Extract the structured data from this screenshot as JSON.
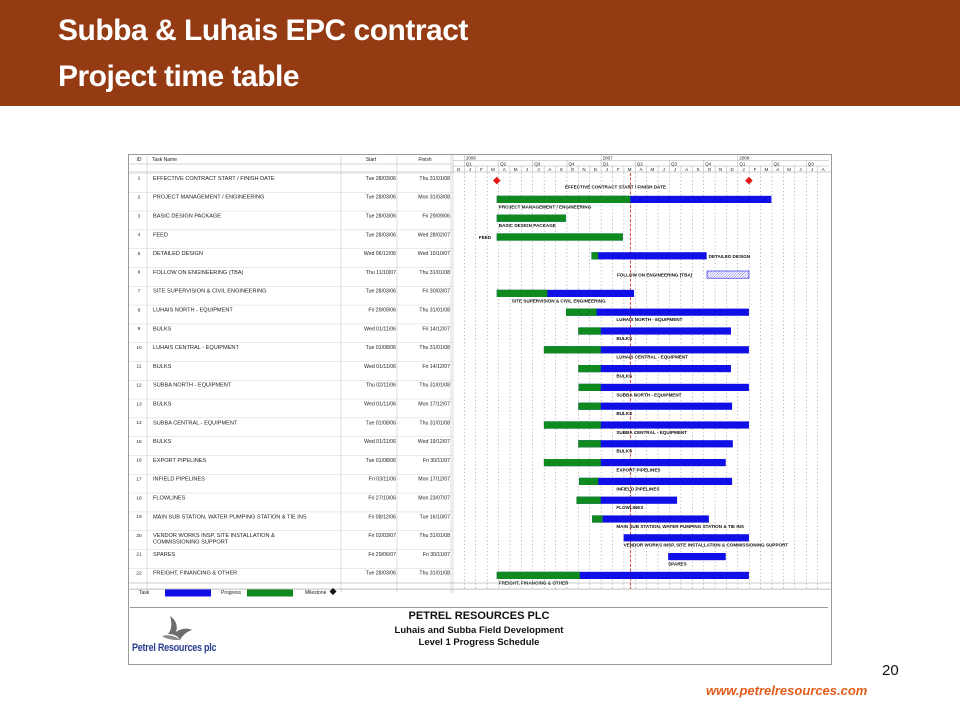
{
  "slide": {
    "title_line1": "Subba & Luhais EPC contract",
    "title_line2": "Project time table",
    "page_number": "20",
    "website": "www.petrelresources.com"
  },
  "colors": {
    "banner": "#953b14",
    "task": "#1010e6",
    "progress": "#0e8a1f",
    "milestone": "#e01818",
    "website": "#e35c1a"
  },
  "footer": {
    "company": "PETREL RESOURCES PLC",
    "project": "Luhais and Subba Field Development",
    "schedule": "Level 1 Progress Schedule",
    "logo_text": "Petrel Resources plc"
  },
  "chart_data": {
    "type": "gantt",
    "columns": [
      "ID",
      "Task Name",
      "Start",
      "Finish"
    ],
    "years": [
      "2006",
      "2007",
      "2008"
    ],
    "quarters": [
      "Q1",
      "Q2",
      "Q3",
      "Q4",
      "Q1",
      "Q2",
      "Q3",
      "Q4",
      "Q1",
      "Q2",
      "Q3"
    ],
    "months": [
      "D",
      "J",
      "F",
      "M",
      "A",
      "M",
      "J",
      "J",
      "A",
      "S",
      "O",
      "N",
      "D",
      "J",
      "F",
      "M",
      "A",
      "M",
      "J",
      "J",
      "A",
      "S",
      "O",
      "N",
      "D",
      "J",
      "F",
      "M",
      "A",
      "M",
      "J",
      "J",
      "A"
    ],
    "timeline": {
      "start": "2005-12-01",
      "end": "2008-09-01",
      "status_date": "2007-03-20"
    },
    "legend": {
      "task": "Task",
      "progress": "Progress",
      "milestone": "Milestone"
    },
    "tasks": [
      {
        "id": "1",
        "name": "EFFECTIVE CONTRACT START / FINISH DATE",
        "start": "Tue 28/03/06",
        "finish": "Thu 31/01/08",
        "type": "milestones",
        "milestones": [
          "2006-03-28",
          "2008-01-31"
        ],
        "bar_label": "EFFECTIVE CONTRACT START / FINISH DATE"
      },
      {
        "id": "2",
        "name": "PROJECT MANAGEMENT / ENGINEERING",
        "start": "Tue 28/03/06",
        "finish": "Mon 31/03/08",
        "type": "bar",
        "bar_start": "2006-03-28",
        "bar_end": "2008-03-31",
        "progress_to": "2007-03-20",
        "bar_label": "PROJECT MANAGEMENT / ENGINEERING"
      },
      {
        "id": "3",
        "name": "BASIC DESIGN PACKAGE",
        "start": "Tue 28/03/06",
        "finish": "Fri 29/09/06",
        "type": "bar",
        "bar_start": "2006-03-28",
        "bar_end": "2006-09-29",
        "progress_to": "2006-09-29",
        "bar_label": "BASIC DESIGN PACKAGE"
      },
      {
        "id": "4",
        "name": "FEED",
        "start": "Tue 28/03/06",
        "finish": "Wed 28/02/07",
        "type": "bar",
        "bar_start": "2006-03-28",
        "bar_end": "2007-02-28",
        "progress_to": "2007-02-28",
        "bar_label": "FEED"
      },
      {
        "id": "5",
        "name": "DETAILED DESIGN",
        "start": "Wed 06/12/06",
        "finish": "Wed 10/10/07",
        "type": "bar",
        "bar_start": "2006-12-06",
        "bar_end": "2007-10-10",
        "progress_to": "2006-12-24",
        "bar_label": "DETAILED DESIGN"
      },
      {
        "id": "6",
        "name": "FOLLOW ON ENGINEERING (TBA)",
        "start": "Thu 11/10/07",
        "finish": "Thu 31/01/08",
        "type": "hatched",
        "bar_start": "2007-10-11",
        "bar_end": "2008-01-31",
        "bar_label": "FOLLOW ON ENGINEERING (TBA)"
      },
      {
        "id": "7",
        "name": "SITE SUPERVISION & CIVIL ENGINEERING",
        "start": "Tue 28/03/06",
        "finish": "Fri 30/03/07",
        "type": "bar",
        "bar_start": "2006-03-28",
        "bar_end": "2007-03-30",
        "progress_to": "2006-08-10",
        "bar_label": "SITE SUPERVISION & CIVIL ENGINEERING"
      },
      {
        "id": "8",
        "name": "LUHAIS NORTH - EQUIPMENT",
        "start": "Fri 29/09/06",
        "finish": "Thu 31/01/08",
        "type": "bar",
        "bar_start": "2006-09-29",
        "bar_end": "2008-01-31",
        "progress_to": "2006-12-20",
        "bar_label": "LUHAIS NORTH - EQUIPMENT"
      },
      {
        "id": "9",
        "name": "BULKS",
        "start": "Wed 01/11/06",
        "finish": "Fri 14/12/07",
        "type": "bar",
        "bar_start": "2006-11-01",
        "bar_end": "2007-12-14",
        "progress_to": "2006-12-31",
        "bar_label": "BULKS"
      },
      {
        "id": "10",
        "name": "LUHAIS CENTRAL - EQUIPMENT",
        "start": "Tue 01/08/06",
        "finish": "Thu 31/01/08",
        "type": "bar",
        "bar_start": "2006-08-01",
        "bar_end": "2008-01-31",
        "progress_to": "2006-12-31",
        "bar_label": "LUHAIS CENTRAL - EQUIPMENT"
      },
      {
        "id": "11",
        "name": "BULKS",
        "start": "Wed 01/11/06",
        "finish": "Fri 14/12/07",
        "type": "bar",
        "bar_start": "2006-11-01",
        "bar_end": "2007-12-14",
        "progress_to": "2006-12-31",
        "bar_label": "BULKS"
      },
      {
        "id": "12",
        "name": "SUBBA NORTH - EQUIPMENT",
        "start": "Thu 02/11/06",
        "finish": "Thu 31/01/08",
        "type": "bar",
        "bar_start": "2006-11-02",
        "bar_end": "2008-01-31",
        "progress_to": "2006-12-31",
        "bar_label": "SUBBA NORTH - EQUIPMENT"
      },
      {
        "id": "13",
        "name": "BULKS",
        "start": "Wed 01/11/06",
        "finish": "Mon 17/12/07",
        "type": "bar",
        "bar_start": "2006-11-01",
        "bar_end": "2007-12-17",
        "progress_to": "2006-12-31",
        "bar_label": "BULKS"
      },
      {
        "id": "14",
        "name": "SUBBA CENTRAL - EQUIPMENT",
        "start": "Tue 01/08/06",
        "finish": "Thu 31/01/08",
        "type": "bar",
        "bar_start": "2006-08-01",
        "bar_end": "2008-01-31",
        "progress_to": "2006-12-31",
        "bar_label": "SUBBA CENTRAL - EQUIPMENT"
      },
      {
        "id": "15",
        "name": "BULKS",
        "start": "Wed 01/11/06",
        "finish": "Wed 19/12/07",
        "type": "bar",
        "bar_start": "2006-11-01",
        "bar_end": "2007-12-19",
        "progress_to": "2006-12-31",
        "bar_label": "BULKS"
      },
      {
        "id": "16",
        "name": "EXPORT PIPELINES",
        "start": "Tue 01/08/06",
        "finish": "Fri 30/11/07",
        "type": "bar",
        "bar_start": "2006-08-01",
        "bar_end": "2007-11-30",
        "progress_to": "2006-12-31",
        "bar_label": "EXPORT PIPELINES"
      },
      {
        "id": "17",
        "name": "INFIELD PIPELINES",
        "start": "Fri 03/11/06",
        "finish": "Mon 17/12/07",
        "type": "bar",
        "bar_start": "2006-11-03",
        "bar_end": "2007-12-17",
        "progress_to": "2006-12-24",
        "bar_label": "INFIELD PIPELINES"
      },
      {
        "id": "18",
        "name": "FLOWLINES",
        "start": "Fri 27/10/06",
        "finish": "Mon 23/07/07",
        "type": "bar",
        "bar_start": "2006-10-27",
        "bar_end": "2007-07-23",
        "progress_to": "2006-12-31",
        "bar_label": "FLOWLINES"
      },
      {
        "id": "19",
        "name": "MAIN SUB STATION, WATER PUMPING STATION & TIE INS",
        "start": "Fri 08/12/06",
        "finish": "Tue 16/10/07",
        "type": "bar",
        "bar_start": "2006-12-08",
        "bar_end": "2007-10-16",
        "progress_to": "2007-01-05",
        "bar_label": "MAIN SUB STATION, WATER PUMPING STATION & TIE INS"
      },
      {
        "id": "20",
        "name": "VENDOR WORKS INSP, SITE INSTALLATION & COMMISSIONING SUPPORT",
        "name_line1": "VENDOR WORKS INSP, SITE INSTALLATION &",
        "name_line2": "COMMISSIONING SUPPORT",
        "start": "Fri 02/03/07",
        "finish": "Thu 31/01/08",
        "type": "bar",
        "bar_start": "2007-03-02",
        "bar_end": "2008-01-31",
        "progress_to": "2007-03-02",
        "bar_label": "VENDOR WORKS INSP, SITE INSTALLATION & COMMISSIONING SUPPORT"
      },
      {
        "id": "21",
        "name": "SPARES",
        "start": "Fri 29/06/07",
        "finish": "Fri 30/11/07",
        "type": "bar",
        "bar_start": "2007-06-29",
        "bar_end": "2007-11-30",
        "progress_to": "2007-06-29",
        "bar_label": "SPARES"
      },
      {
        "id": "22",
        "name": "FREIGHT, FINANCING & OTHER",
        "start": "Tue 28/03/06",
        "finish": "Thu 31/01/08",
        "type": "bar",
        "bar_start": "2006-03-28",
        "bar_end": "2008-01-31",
        "progress_to": "2006-11-05",
        "bar_label": "FREIGHT, FINANCING & OTHER"
      }
    ]
  }
}
